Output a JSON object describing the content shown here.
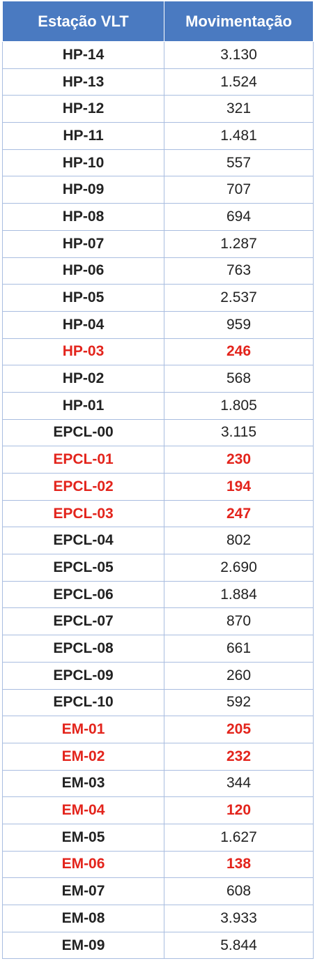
{
  "header": {
    "station": "Estação VLT",
    "movement": "Movimentação"
  },
  "colors": {
    "header_bg": "#4a7ac1",
    "highlight": "#e3241c",
    "grid": "#a9bde0"
  },
  "rows": [
    {
      "station": "HP-14",
      "value": "3.130",
      "highlight": false
    },
    {
      "station": "HP-13",
      "value": "1.524",
      "highlight": false
    },
    {
      "station": "HP-12",
      "value": "321",
      "highlight": false
    },
    {
      "station": "HP-11",
      "value": "1.481",
      "highlight": false
    },
    {
      "station": "HP-10",
      "value": "557",
      "highlight": false
    },
    {
      "station": "HP-09",
      "value": "707",
      "highlight": false
    },
    {
      "station": "HP-08",
      "value": "694",
      "highlight": false
    },
    {
      "station": "HP-07",
      "value": "1.287",
      "highlight": false
    },
    {
      "station": "HP-06",
      "value": "763",
      "highlight": false
    },
    {
      "station": "HP-05",
      "value": "2.537",
      "highlight": false
    },
    {
      "station": "HP-04",
      "value": "959",
      "highlight": false
    },
    {
      "station": "HP-03",
      "value": "246",
      "highlight": true
    },
    {
      "station": "HP-02",
      "value": "568",
      "highlight": false
    },
    {
      "station": "HP-01",
      "value": "1.805",
      "highlight": false
    },
    {
      "station": "EPCL-00",
      "value": "3.115",
      "highlight": false
    },
    {
      "station": "EPCL-01",
      "value": "230",
      "highlight": true
    },
    {
      "station": "EPCL-02",
      "value": "194",
      "highlight": true
    },
    {
      "station": "EPCL-03",
      "value": "247",
      "highlight": true
    },
    {
      "station": "EPCL-04",
      "value": "802",
      "highlight": false
    },
    {
      "station": "EPCL-05",
      "value": "2.690",
      "highlight": false
    },
    {
      "station": "EPCL-06",
      "value": "1.884",
      "highlight": false
    },
    {
      "station": "EPCL-07",
      "value": "870",
      "highlight": false
    },
    {
      "station": "EPCL-08",
      "value": "661",
      "highlight": false
    },
    {
      "station": "EPCL-09",
      "value": "260",
      "highlight": false
    },
    {
      "station": "EPCL-10",
      "value": "592",
      "highlight": false
    },
    {
      "station": "EM-01",
      "value": "205",
      "highlight": true
    },
    {
      "station": "EM-02",
      "value": "232",
      "highlight": true
    },
    {
      "station": "EM-03",
      "value": "344",
      "highlight": false
    },
    {
      "station": "EM-04",
      "value": "120",
      "highlight": true
    },
    {
      "station": "EM-05",
      "value": "1.627",
      "highlight": false
    },
    {
      "station": "EM-06",
      "value": "138",
      "highlight": true
    },
    {
      "station": "EM-07",
      "value": "608",
      "highlight": false
    },
    {
      "station": "EM-08",
      "value": "3.933",
      "highlight": false
    },
    {
      "station": "EM-09",
      "value": "5.844",
      "highlight": false
    }
  ]
}
